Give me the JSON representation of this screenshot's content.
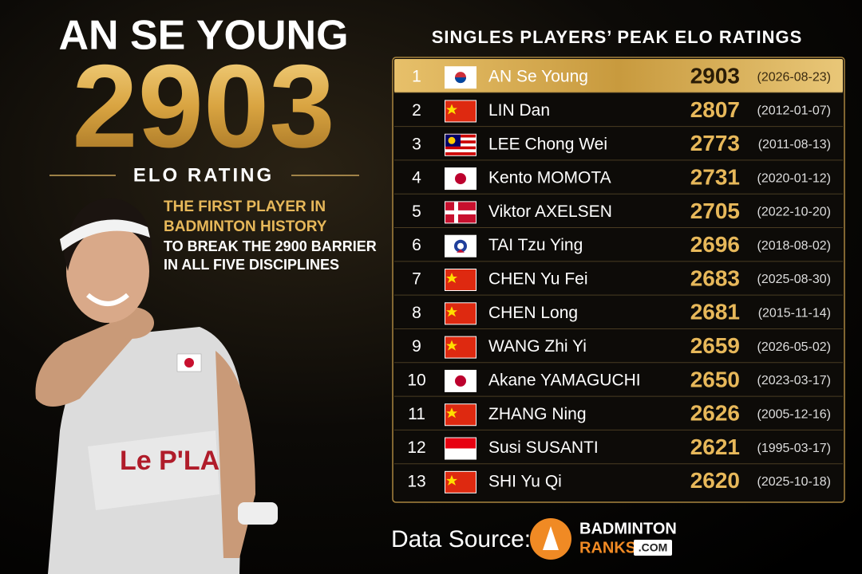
{
  "header": {
    "title": "AN SE YOUNG",
    "score": "2903",
    "score_label": "ELO RATING",
    "tagline": [
      "THE FIRST PLAYER IN",
      "BADMINTON HISTORY",
      "TO BREAK THE 2900 BARRIER",
      "IN ALL FIVE DISCIPLINES"
    ]
  },
  "table": {
    "title": "SINGLES PLAYERS’ PEAK ELO RATINGS",
    "rows": [
      [
        1,
        "AN Se Young",
        2903,
        "(2026-08-23)"
      ],
      [
        2,
        "LIN Dan",
        2807,
        "(2012-01-07)"
      ],
      [
        3,
        "LEE Chong Wei",
        2773,
        "(2011-08-13)"
      ],
      [
        4,
        "Kento MOMOTA",
        2731,
        "(2020-01-12)"
      ],
      [
        5,
        "Viktor AXELSEN",
        2705,
        "(2022-10-20)"
      ],
      [
        6,
        "TAI Tzu Ying",
        2696,
        "(2018-08-02)"
      ],
      [
        7,
        "CHEN Yu Fei",
        2683,
        "(2025-08-30)"
      ],
      [
        8,
        "CHEN Long",
        2681,
        "(2015-11-14)"
      ],
      [
        9,
        "WANG Zhi Yi",
        2659,
        "(2026-05-02)"
      ],
      [
        10,
        "Akane YAMAGUCHI",
        2650,
        "(2023-03-17)"
      ],
      [
        11,
        "ZHANG Ning",
        2626,
        "(2005-12-16)"
      ],
      [
        12,
        "Susi SUSANTI",
        2621,
        "(1995-03-17)"
      ],
      [
        13,
        "SHI Yu Qi",
        2620,
        "(2025-10-18)"
      ]
    ]
  },
  "footer": {
    "source_label": "Data Source:",
    "logo": [
      "BADMINTON",
      "RANKS",
      ".COM"
    ]
  }
}
